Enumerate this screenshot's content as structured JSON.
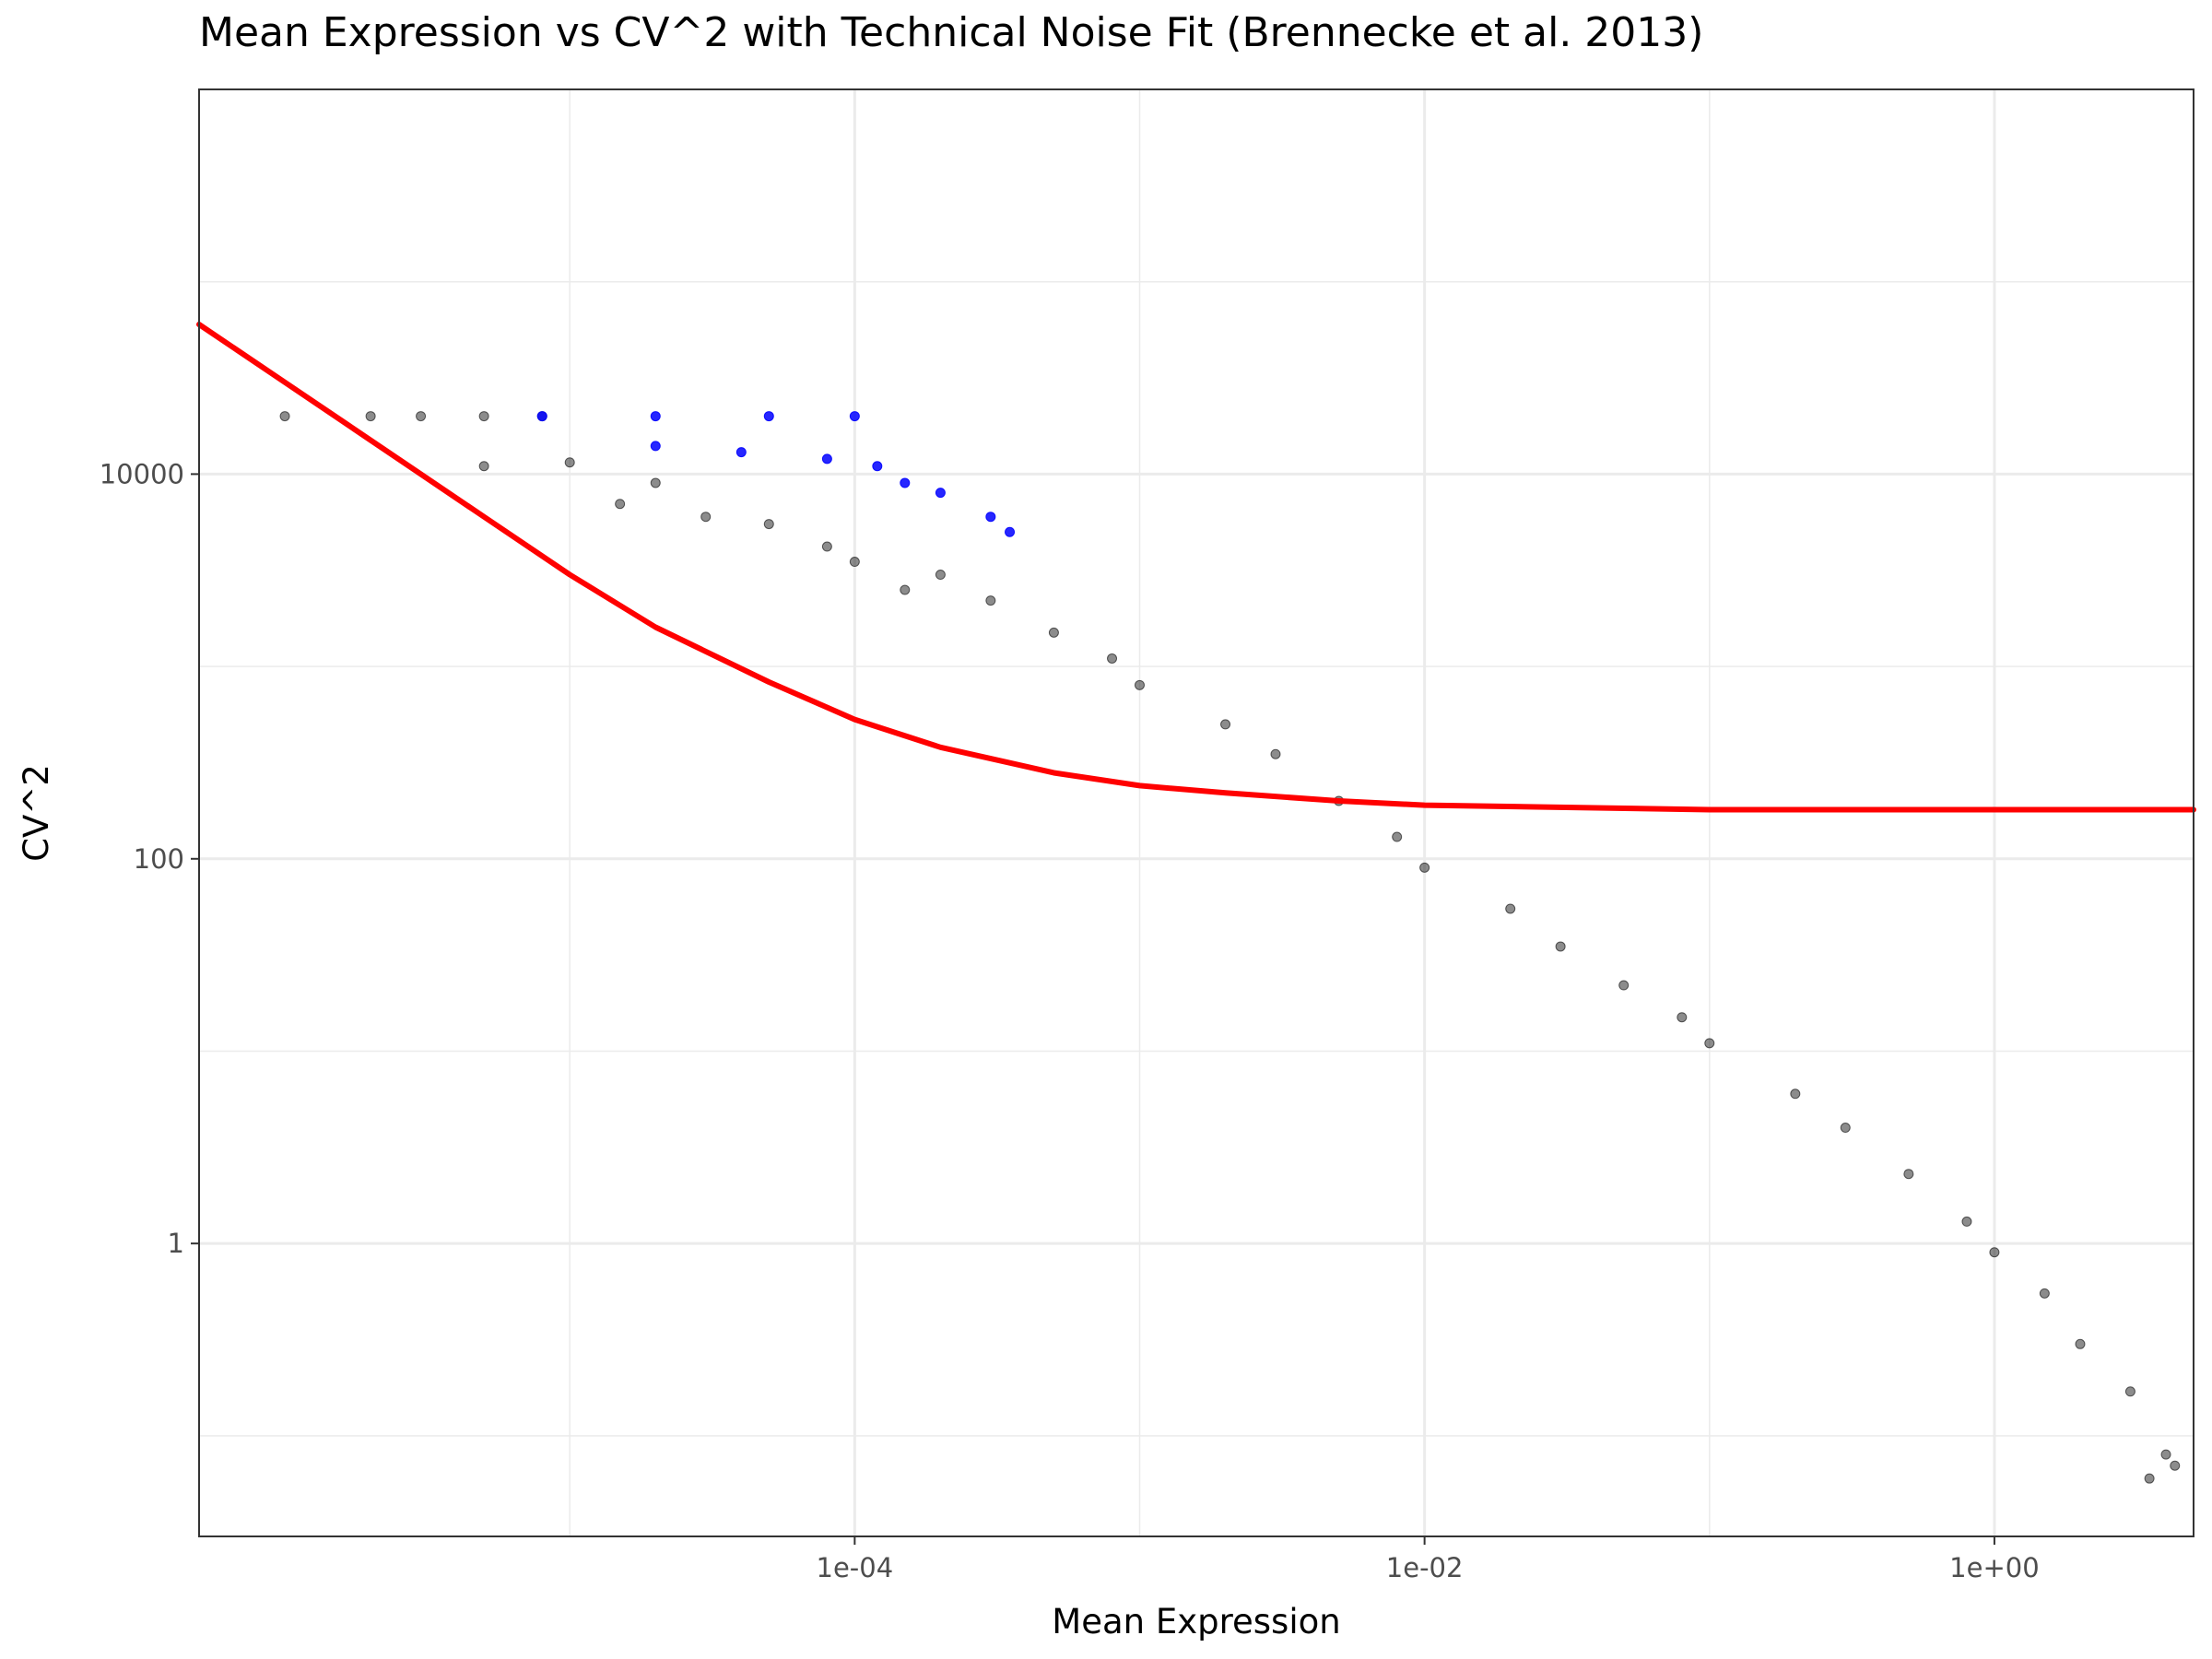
{
  "chart_data": {
    "type": "scatter",
    "title": "Mean Expression vs CV^2 with Technical Noise Fit (Brennecke et al. 2013)",
    "xlabel": "Mean Expression",
    "ylabel": "CV^2",
    "x_scale": "log10",
    "y_scale": "log10",
    "xlim": [
      5e-07,
      5
    ],
    "ylim": [
      0.03,
      1000000
    ],
    "x_ticks": [
      {
        "value": 0.0001,
        "label": "1e-04"
      },
      {
        "value": 0.01,
        "label": "1e-02"
      },
      {
        "value": 1,
        "label": "1e+00"
      }
    ],
    "y_ticks": [
      {
        "value": 1,
        "label": "1"
      },
      {
        "value": 100,
        "label": "100"
      },
      {
        "value": 10000,
        "label": "10000"
      }
    ],
    "grid": true,
    "legend": "none",
    "series": [
      {
        "color": "#000000",
        "points": [
          [
            1e-06,
            20000
          ],
          [
            2e-06,
            20000
          ],
          [
            3e-06,
            20000
          ],
          [
            5e-06,
            20000
          ],
          [
            8e-06,
            20000
          ],
          [
            5e-06,
            11000
          ],
          [
            1e-05,
            11500
          ],
          [
            2e-05,
            9000
          ],
          [
            1.5e-05,
            7000
          ],
          [
            3e-05,
            6000
          ],
          [
            5e-05,
            5500
          ],
          [
            8e-05,
            4200
          ],
          [
            0.0001,
            3500
          ],
          [
            0.00015,
            2500
          ],
          [
            0.0002,
            3000
          ],
          [
            0.0003,
            2200
          ],
          [
            0.0005,
            1500
          ],
          [
            0.0008,
            1100
          ],
          [
            0.001,
            800
          ],
          [
            0.002,
            500
          ],
          [
            0.003,
            350
          ],
          [
            0.005,
            200
          ],
          [
            0.008,
            130
          ],
          [
            0.01,
            90
          ],
          [
            0.02,
            55
          ],
          [
            0.03,
            35
          ],
          [
            0.05,
            22
          ],
          [
            0.08,
            15
          ],
          [
            0.1,
            11
          ],
          [
            0.2,
            6
          ],
          [
            0.3,
            4
          ],
          [
            0.5,
            2.3
          ],
          [
            0.8,
            1.3
          ],
          [
            1,
            0.9
          ],
          [
            1.5,
            0.55
          ],
          [
            2,
            0.3
          ],
          [
            3,
            0.17
          ],
          [
            4,
            0.08
          ],
          [
            3.5,
            0.06
          ],
          [
            4.3,
            0.07
          ]
        ]
      },
      {
        "color": "#0000ff",
        "points": [
          [
            8e-06,
            20000
          ],
          [
            2e-05,
            20000
          ],
          [
            5e-05,
            20000
          ],
          [
            0.0001,
            20000
          ],
          [
            2e-05,
            14000
          ],
          [
            4e-05,
            13000
          ],
          [
            8e-05,
            12000
          ],
          [
            0.00012,
            11000
          ],
          [
            0.00015,
            9000
          ],
          [
            0.0002,
            8000
          ],
          [
            0.0003,
            6000
          ],
          [
            0.00035,
            5000
          ]
        ]
      }
    ],
    "fit_line": {
      "color": "#ff0000",
      "points": [
        [
          5e-07,
          60000
        ],
        [
          1e-06,
          30000
        ],
        [
          2e-06,
          15000
        ],
        [
          5e-06,
          6000
        ],
        [
          1e-05,
          3000
        ],
        [
          2e-05,
          1600
        ],
        [
          5e-05,
          830
        ],
        [
          0.0001,
          530
        ],
        [
          0.0002,
          380
        ],
        [
          0.0005,
          280
        ],
        [
          0.001,
          240
        ],
        [
          0.002,
          220
        ],
        [
          0.005,
          200
        ],
        [
          0.01,
          190
        ],
        [
          0.1,
          180
        ],
        [
          1,
          180
        ],
        [
          5,
          180
        ]
      ]
    }
  }
}
